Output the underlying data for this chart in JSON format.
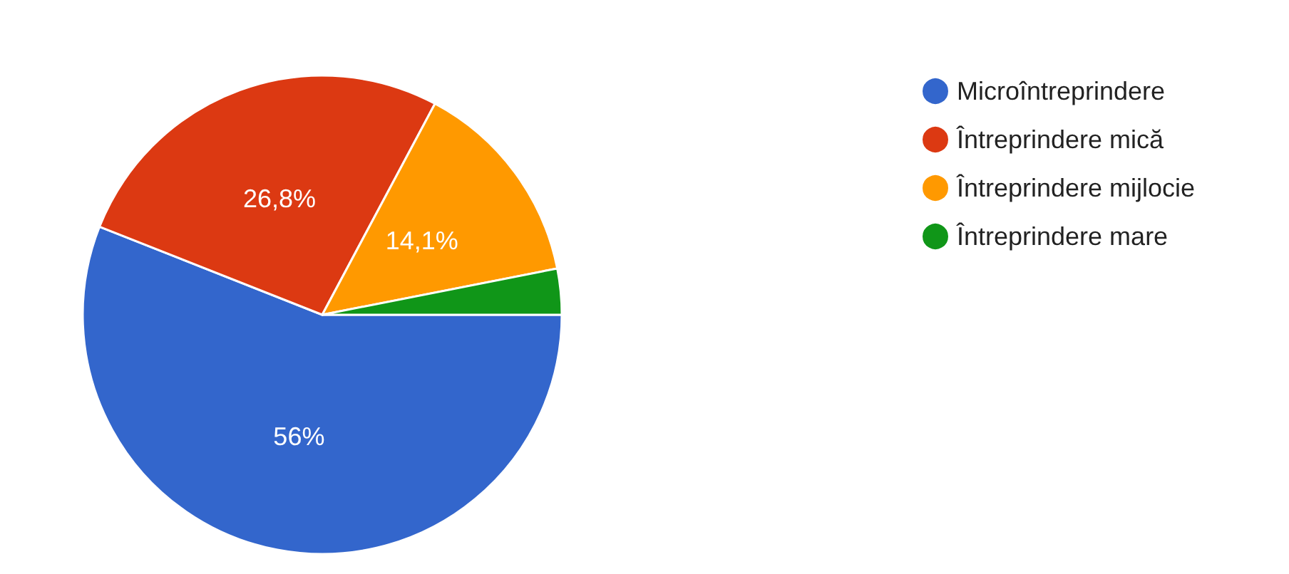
{
  "chart_data": {
    "type": "pie",
    "categories": [
      "Microîntreprindere",
      "Întreprindere mică",
      "Întreprindere mijlocie",
      "Întreprindere mare"
    ],
    "values": [
      56,
      26.8,
      14.1,
      3.1
    ],
    "colors": [
      "#3366cc",
      "#dc3912",
      "#ff9900",
      "#109618"
    ],
    "value_labels": [
      "56%",
      "26,8%",
      "14,1%",
      null
    ],
    "legend": "right"
  }
}
